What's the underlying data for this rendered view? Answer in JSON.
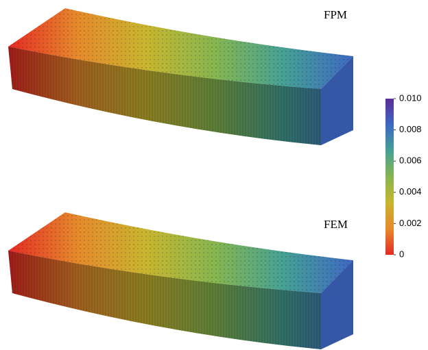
{
  "panels": [
    {
      "label": "FPM"
    },
    {
      "label": "FEM"
    }
  ],
  "colorbar": {
    "lim": [
      0,
      0.01
    ],
    "ticks": [
      0,
      0.002,
      0.004,
      0.006,
      0.008,
      {
        "value": 0.01,
        "label": "0.010"
      }
    ],
    "colormap": [
      "#e42a24",
      "#e6892c",
      "#c8b52f",
      "#86b650",
      "#45a095",
      "#3e68c4",
      "#5b2b97"
    ]
  }
}
